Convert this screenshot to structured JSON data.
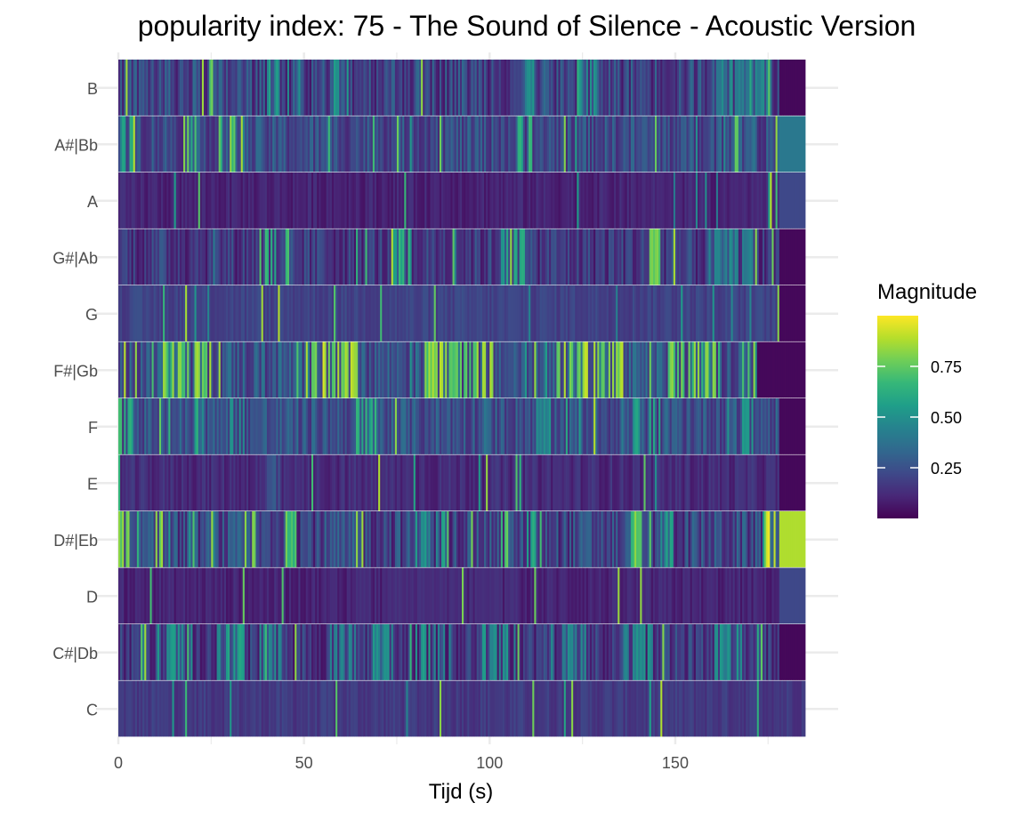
{
  "chart_data": {
    "type": "heatmap",
    "title": "popularity index:  75  -  The Sound of Silence - Acoustic Version",
    "xlabel": "Tijd (s)",
    "ylabel": "",
    "xlim": [
      0,
      185
    ],
    "x_ticks": [
      0,
      50,
      100,
      150
    ],
    "y_categories": [
      "C",
      "C#|Db",
      "D",
      "D#|Eb",
      "E",
      "F",
      "F#|Gb",
      "G",
      "G#|Ab",
      "A",
      "A#|Bb",
      "B"
    ],
    "grid": true,
    "legend": {
      "title": "Magnitude",
      "placement": "right",
      "range": [
        0,
        1
      ],
      "ticks": [
        0.25,
        0.5,
        0.75
      ],
      "tick_labels": [
        "0.25",
        "0.50",
        "0.75"
      ],
      "colormap": [
        "#440154",
        "#482878",
        "#3e4989",
        "#31688e",
        "#26828e",
        "#1f9e89",
        "#35b779",
        "#6ece58",
        "#b5de2b",
        "#fde725"
      ]
    },
    "segment_duration_s": 0.5,
    "segment_count": 370,
    "rows": [
      {
        "name": "C",
        "base": 0.15,
        "var": 0.1,
        "peaks": []
      },
      {
        "name": "C#|Db",
        "base": 0.12,
        "var": 0.25,
        "peaks": [
          [
            6,
            8,
            0.95
          ],
          [
            13,
            20,
            0.6
          ],
          [
            26,
            34,
            0.6
          ],
          [
            37,
            44,
            0.5
          ],
          [
            57,
            64,
            0.5
          ],
          [
            68,
            74,
            0.55
          ],
          [
            80,
            90,
            0.6
          ],
          [
            98,
            108,
            0.55
          ],
          [
            116,
            126,
            0.5
          ],
          [
            136,
            144,
            0.55
          ],
          [
            160,
            168,
            0.55
          ],
          [
            172,
            174,
            0.8
          ]
        ],
        "tail": [
          178,
          185,
          0.02
        ]
      },
      {
        "name": "D",
        "base": 0.08,
        "var": 0.1,
        "peaks": [
          [
            64,
            110,
            0.15
          ]
        ],
        "tail": [
          178,
          185,
          0.22
        ]
      },
      {
        "name": "D#|Eb",
        "base": 0.15,
        "var": 0.3,
        "peaks": [
          [
            0,
            3,
            0.85
          ],
          [
            10,
            12,
            0.9
          ],
          [
            25,
            26,
            0.95
          ],
          [
            34,
            37,
            0.9
          ],
          [
            44,
            48,
            0.8
          ],
          [
            64,
            66,
            0.9
          ],
          [
            80,
            88,
            0.6
          ],
          [
            102,
            106,
            0.8
          ],
          [
            110,
            114,
            0.7
          ],
          [
            138,
            142,
            0.85
          ],
          [
            146,
            150,
            0.6
          ],
          [
            174,
            178,
            0.98
          ]
        ],
        "tail": [
          178,
          185,
          0.88
        ]
      },
      {
        "name": "E",
        "base": 0.1,
        "var": 0.12,
        "peaks": [
          [
            38,
            44,
            0.3
          ]
        ],
        "tail": [
          178,
          185,
          0.02
        ]
      },
      {
        "name": "F",
        "base": 0.2,
        "var": 0.25,
        "peaks": [
          [
            0,
            4,
            0.7
          ],
          [
            30,
            34,
            0.6
          ],
          [
            64,
            70,
            0.7
          ],
          [
            110,
            116,
            0.5
          ],
          [
            138,
            146,
            0.6
          ],
          [
            168,
            172,
            0.6
          ]
        ],
        "tail": [
          178,
          185,
          0.02
        ]
      },
      {
        "name": "F#|Gb",
        "base": 0.2,
        "var": 0.3,
        "peaks": [
          [
            12,
            24,
            0.9
          ],
          [
            50,
            65,
            0.95
          ],
          [
            82,
            102,
            0.9
          ],
          [
            118,
            136,
            0.92
          ],
          [
            148,
            164,
            0.85
          ],
          [
            168,
            170,
            0.9
          ]
        ],
        "tail": [
          172,
          185,
          0.02
        ]
      },
      {
        "name": "G",
        "base": 0.18,
        "var": 0.1,
        "peaks": [],
        "tail": [
          178,
          185,
          0.02
        ]
      },
      {
        "name": "G#|Ab",
        "base": 0.12,
        "var": 0.25,
        "peaks": [
          [
            38,
            46,
            0.75
          ],
          [
            74,
            80,
            0.7
          ],
          [
            102,
            110,
            0.65
          ],
          [
            143,
            146,
            0.85
          ],
          [
            158,
            172,
            0.5
          ]
        ],
        "tail": [
          178,
          185,
          0.02
        ]
      },
      {
        "name": "A",
        "base": 0.08,
        "var": 0.1,
        "peaks": [
          [
            142,
            178,
            0.12
          ]
        ],
        "tail": [
          178,
          185,
          0.22
        ]
      },
      {
        "name": "A#|Bb",
        "base": 0.18,
        "var": 0.25,
        "peaks": [
          [
            0,
            4,
            0.7
          ],
          [
            26,
            32,
            0.85
          ],
          [
            106,
            112,
            0.7
          ],
          [
            158,
            172,
            0.4
          ]
        ],
        "tail": [
          178,
          185,
          0.4
        ]
      },
      {
        "name": "B",
        "base": 0.15,
        "var": 0.3,
        "peaks": [
          [
            24,
            26,
            0.8
          ],
          [
            40,
            46,
            0.6
          ],
          [
            58,
            62,
            0.6
          ],
          [
            108,
            112,
            0.55
          ],
          [
            124,
            130,
            0.55
          ],
          [
            160,
            176,
            0.5
          ]
        ],
        "tail": [
          178,
          185,
          0.02
        ]
      }
    ]
  }
}
